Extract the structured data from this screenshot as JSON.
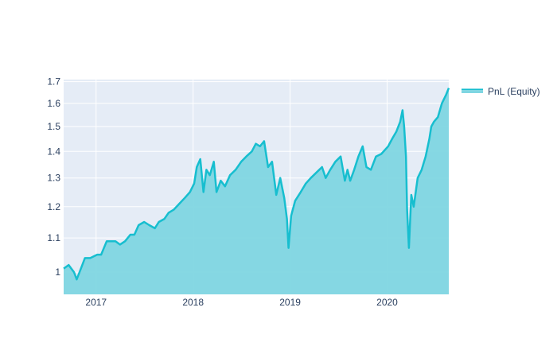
{
  "chart_data": {
    "type": "area",
    "title": "",
    "xlabel": "",
    "ylabel": "",
    "y_scale": "log",
    "xlim": [
      "2016-09-01",
      "2020-08-20"
    ],
    "ylim": [
      0.94,
      1.71
    ],
    "x_ticks": [
      "2017",
      "2018",
      "2019",
      "2020"
    ],
    "y_ticks": [
      "1",
      "1.1",
      "1.2",
      "1.3",
      "1.4",
      "1.5",
      "1.6",
      "1.7"
    ],
    "grid": true,
    "legend_position": "top-right",
    "colors": {
      "line": "#17becf",
      "fill": "#7fd6e2",
      "plot_bg": "#e5ecf6",
      "grid": "#ffffff",
      "text": "#2a3f5f"
    },
    "series": [
      {
        "name": "PnL (Equity)",
        "x": [
          "2016-09-01",
          "2016-09-20",
          "2016-10-10",
          "2016-10-20",
          "2016-11-05",
          "2016-11-20",
          "2016-12-10",
          "2017-01-05",
          "2017-01-20",
          "2017-02-10",
          "2017-03-01",
          "2017-03-15",
          "2017-04-01",
          "2017-04-20",
          "2017-05-10",
          "2017-05-25",
          "2017-06-10",
          "2017-07-01",
          "2017-07-20",
          "2017-08-10",
          "2017-08-25",
          "2017-09-15",
          "2017-10-01",
          "2017-10-20",
          "2017-11-10",
          "2017-12-01",
          "2017-12-20",
          "2018-01-05",
          "2018-01-15",
          "2018-01-28",
          "2018-02-09",
          "2018-02-20",
          "2018-03-05",
          "2018-03-20",
          "2018-03-30",
          "2018-04-15",
          "2018-05-01",
          "2018-05-20",
          "2018-06-10",
          "2018-07-01",
          "2018-07-20",
          "2018-08-10",
          "2018-08-25",
          "2018-09-10",
          "2018-09-25",
          "2018-10-10",
          "2018-10-25",
          "2018-11-10",
          "2018-11-25",
          "2018-12-10",
          "2018-12-20",
          "2018-12-26",
          "2019-01-05",
          "2019-01-20",
          "2019-02-10",
          "2019-03-01",
          "2019-03-20",
          "2019-04-10",
          "2019-05-01",
          "2019-05-15",
          "2019-06-01",
          "2019-06-20",
          "2019-07-10",
          "2019-07-26",
          "2019-08-05",
          "2019-08-15",
          "2019-08-30",
          "2019-09-15",
          "2019-10-01",
          "2019-10-15",
          "2019-11-01",
          "2019-11-20",
          "2019-12-10",
          "2020-01-05",
          "2020-01-20",
          "2020-02-05",
          "2020-02-19",
          "2020-02-28",
          "2020-03-05",
          "2020-03-12",
          "2020-03-16",
          "2020-03-23",
          "2020-04-01",
          "2020-04-10",
          "2020-04-25",
          "2020-05-10",
          "2020-05-25",
          "2020-06-08",
          "2020-06-15",
          "2020-06-25",
          "2020-07-10",
          "2020-07-25",
          "2020-08-10",
          "2020-08-20"
        ],
        "y": [
          1.01,
          1.02,
          1.0,
          0.98,
          1.01,
          1.04,
          1.04,
          1.05,
          1.05,
          1.09,
          1.09,
          1.09,
          1.08,
          1.09,
          1.11,
          1.11,
          1.14,
          1.15,
          1.14,
          1.13,
          1.15,
          1.16,
          1.18,
          1.19,
          1.21,
          1.23,
          1.25,
          1.28,
          1.34,
          1.37,
          1.25,
          1.33,
          1.31,
          1.36,
          1.25,
          1.29,
          1.27,
          1.31,
          1.33,
          1.36,
          1.38,
          1.4,
          1.43,
          1.42,
          1.44,
          1.34,
          1.36,
          1.24,
          1.3,
          1.23,
          1.16,
          1.07,
          1.17,
          1.22,
          1.25,
          1.28,
          1.3,
          1.32,
          1.34,
          1.3,
          1.33,
          1.36,
          1.38,
          1.29,
          1.33,
          1.29,
          1.33,
          1.38,
          1.42,
          1.34,
          1.33,
          1.38,
          1.39,
          1.42,
          1.45,
          1.48,
          1.52,
          1.57,
          1.5,
          1.38,
          1.19,
          1.07,
          1.24,
          1.2,
          1.3,
          1.33,
          1.38,
          1.45,
          1.5,
          1.52,
          1.54,
          1.6,
          1.64,
          1.67
        ]
      }
    ]
  }
}
